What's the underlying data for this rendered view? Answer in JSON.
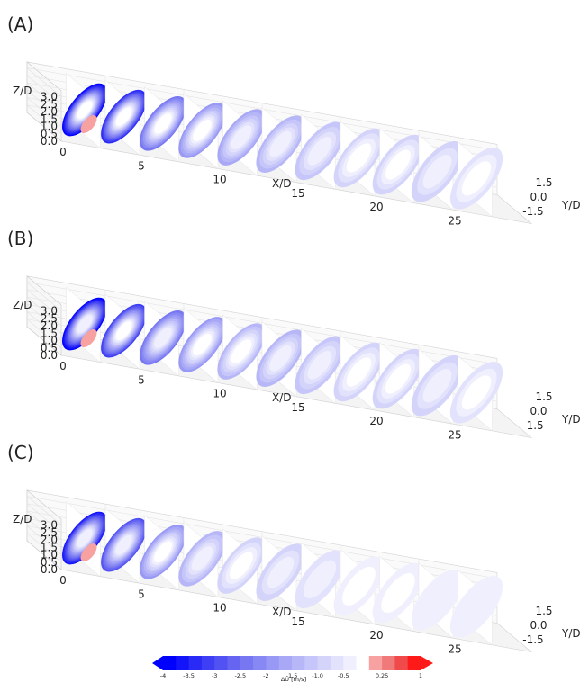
{
  "chart_data": [
    {
      "type": "3d-contour-slices",
      "panel_label": "(A)",
      "xlabel": "X/D",
      "ylabel": "Y/D",
      "zlabel": "Z/D",
      "xticks": [
        "0",
        "5",
        "10",
        "15",
        "20",
        "25"
      ],
      "yticks": [
        "-1.5",
        "0.0",
        "1.5"
      ],
      "zticks": [
        "0.0",
        "0.5",
        "1.0",
        "1.5",
        "2.0",
        "2.5",
        "3.0"
      ],
      "slice_x_positions": [
        2.5,
        5,
        7.5,
        10,
        12.5,
        15,
        17.5,
        20,
        22.5,
        25,
        27.5
      ],
      "deficit_min": [
        -4.0,
        -3.4,
        -2.4,
        -2.0,
        -1.6,
        -1.3,
        -1.1,
        -1.0,
        -0.9,
        -0.8,
        -0.7
      ],
      "positive_patch": [
        true,
        false,
        false,
        false,
        false,
        false,
        false,
        false,
        false,
        false,
        false
      ]
    },
    {
      "type": "3d-contour-slices",
      "panel_label": "(B)",
      "xlabel": "X/D",
      "ylabel": "Y/D",
      "zlabel": "Z/D",
      "xticks": [
        "0",
        "5",
        "10",
        "15",
        "20",
        "25"
      ],
      "yticks": [
        "-1.5",
        "0.0",
        "1.5"
      ],
      "zticks": [
        "0.0",
        "0.5",
        "1.0",
        "1.5",
        "2.0",
        "2.5",
        "3.0"
      ],
      "slice_x_positions": [
        2.5,
        5,
        7.5,
        10,
        12.5,
        15,
        17.5,
        20,
        22.5,
        25,
        27.5
      ],
      "deficit_min": [
        -3.8,
        -3.2,
        -2.3,
        -1.9,
        -1.5,
        -1.3,
        -1.1,
        -1.0,
        -0.9,
        -0.8,
        -0.7
      ],
      "positive_patch": [
        true,
        false,
        false,
        false,
        false,
        false,
        false,
        false,
        false,
        false,
        false
      ]
    },
    {
      "type": "3d-contour-slices",
      "panel_label": "(C)",
      "xlabel": "X/D",
      "ylabel": "Y/D",
      "zlabel": "Z/D",
      "xticks": [
        "0",
        "5",
        "10",
        "15",
        "20",
        "25"
      ],
      "yticks": [
        "-1.5",
        "0.0",
        "1.5"
      ],
      "zticks": [
        "0.0",
        "0.5",
        "1.0",
        "1.5",
        "2.0",
        "2.5",
        "3.0"
      ],
      "slice_x_positions": [
        2.5,
        5,
        7.5,
        10,
        12.5,
        15,
        17.5,
        20,
        22.5,
        25,
        27.5
      ],
      "deficit_min": [
        -3.6,
        -2.8,
        -1.9,
        -1.3,
        -1.0,
        -0.8,
        -0.6,
        -0.5,
        -0.4,
        -0.3,
        -0.3
      ],
      "positive_patch": [
        true,
        false,
        false,
        false,
        false,
        false,
        false,
        false,
        false,
        false,
        false
      ]
    }
  ],
  "colorbar": {
    "label": "ΔU [m/s]",
    "tick_labels": [
      "-4",
      "-3.5",
      "-3",
      "-2.5",
      "-2",
      "-1.5",
      "-1.0",
      "-0.5",
      "0.25",
      "1"
    ],
    "tick_values": [
      -4,
      -3.5,
      -3,
      -2.5,
      -2,
      -1.5,
      -1.0,
      -0.5,
      0.25,
      1
    ],
    "levels": [
      -4,
      -3.75,
      -3.5,
      -3.25,
      -3,
      -2.75,
      -2.5,
      -2.25,
      -2,
      -1.75,
      -1.5,
      -1.25,
      -1.0,
      -0.75,
      -0.5,
      -0.25,
      0,
      0.25,
      0.5,
      0.75,
      1
    ],
    "colors": [
      "#0000ff",
      "#1414fb",
      "#2a2af7",
      "#3e3ef4",
      "#5252f2",
      "#6565f2",
      "#7777f2",
      "#8888f4",
      "#9898f5",
      "#a8a8f7",
      "#b7b7f8",
      "#c6c6fa",
      "#d4d4fb",
      "#e2e2fd",
      "#efeffe",
      "#ffffff",
      "#f7a1a1",
      "#f07a7a",
      "#f04a4a",
      "#ff1a1a"
    ]
  }
}
